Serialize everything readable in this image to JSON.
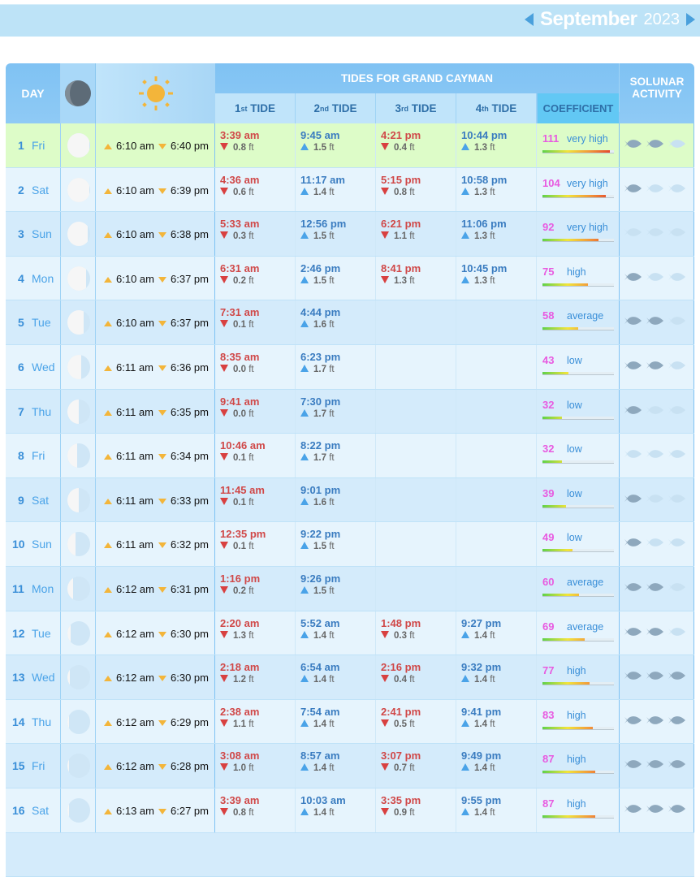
{
  "nav": {
    "month": "September",
    "year": "2023"
  },
  "header": {
    "day": "DAY",
    "tides_title": "TIDES FOR GRAND CAYMAN",
    "tides": [
      {
        "n": "1",
        "sup": "st",
        "label": "TIDE"
      },
      {
        "n": "2",
        "sup": "nd",
        "label": "TIDE"
      },
      {
        "n": "3",
        "sup": "rd",
        "label": "TIDE"
      },
      {
        "n": "4",
        "sup": "th",
        "label": "TIDE"
      }
    ],
    "coefficient": "COEFFICIENT",
    "solunar": "SOLUNAR ACTIVITY"
  },
  "colors": {
    "low_tide": "#d04848",
    "high_tide": "#3a7cc0",
    "coefficient": "#e85ae0",
    "highlight_row": "#ddfcc8",
    "row_odd": "#d4ebfb",
    "row_even": "#e6f4fd"
  },
  "unit": "ft",
  "rows": [
    {
      "day": "1",
      "dow": "Fri",
      "moon_illumination": 0.98,
      "sunrise": "6:10 am",
      "sunset": "6:40 pm",
      "tides": [
        {
          "time": "3:39 am",
          "type": "low",
          "height": "0.8"
        },
        {
          "time": "9:45 am",
          "type": "high",
          "height": "1.5"
        },
        {
          "time": "4:21 pm",
          "type": "low",
          "height": "0.4"
        },
        {
          "time": "10:44 pm",
          "type": "high",
          "height": "1.3"
        }
      ],
      "coef": "111",
      "coef_label": "very high",
      "solunar": 2
    },
    {
      "day": "2",
      "dow": "Sat",
      "moon_illumination": 0.95,
      "sunrise": "6:10 am",
      "sunset": "6:39 pm",
      "tides": [
        {
          "time": "4:36 am",
          "type": "low",
          "height": "0.6"
        },
        {
          "time": "11:17 am",
          "type": "high",
          "height": "1.4"
        },
        {
          "time": "5:15 pm",
          "type": "low",
          "height": "0.8"
        },
        {
          "time": "10:58 pm",
          "type": "high",
          "height": "1.3"
        }
      ],
      "coef": "104",
      "coef_label": "very high",
      "solunar": 1
    },
    {
      "day": "3",
      "dow": "Sun",
      "moon_illumination": 0.9,
      "sunrise": "6:10 am",
      "sunset": "6:38 pm",
      "tides": [
        {
          "time": "5:33 am",
          "type": "low",
          "height": "0.3"
        },
        {
          "time": "12:56 pm",
          "type": "high",
          "height": "1.5"
        },
        {
          "time": "6:21 pm",
          "type": "low",
          "height": "1.1"
        },
        {
          "time": "11:06 pm",
          "type": "high",
          "height": "1.3"
        }
      ],
      "coef": "92",
      "coef_label": "very high",
      "solunar": 0
    },
    {
      "day": "4",
      "dow": "Mon",
      "moon_illumination": 0.82,
      "sunrise": "6:10 am",
      "sunset": "6:37 pm",
      "tides": [
        {
          "time": "6:31 am",
          "type": "low",
          "height": "0.2"
        },
        {
          "time": "2:46 pm",
          "type": "high",
          "height": "1.5"
        },
        {
          "time": "8:41 pm",
          "type": "low",
          "height": "1.3"
        },
        {
          "time": "10:45 pm",
          "type": "high",
          "height": "1.3"
        }
      ],
      "coef": "75",
      "coef_label": "high",
      "solunar": 1
    },
    {
      "day": "5",
      "dow": "Tue",
      "moon_illumination": 0.7,
      "sunrise": "6:10 am",
      "sunset": "6:37 pm",
      "tides": [
        {
          "time": "7:31 am",
          "type": "low",
          "height": "0.1"
        },
        {
          "time": "4:44 pm",
          "type": "high",
          "height": "1.6"
        }
      ],
      "coef": "58",
      "coef_label": "average",
      "solunar": 2
    },
    {
      "day": "6",
      "dow": "Wed",
      "moon_illumination": 0.6,
      "sunrise": "6:11 am",
      "sunset": "6:36 pm",
      "tides": [
        {
          "time": "8:35 am",
          "type": "low",
          "height": "0.0"
        },
        {
          "time": "6:23 pm",
          "type": "high",
          "height": "1.7"
        }
      ],
      "coef": "43",
      "coef_label": "low",
      "solunar": 2
    },
    {
      "day": "7",
      "dow": "Thu",
      "moon_illumination": 0.5,
      "sunrise": "6:11 am",
      "sunset": "6:35 pm",
      "tides": [
        {
          "time": "9:41 am",
          "type": "low",
          "height": "0.0"
        },
        {
          "time": "7:30 pm",
          "type": "high",
          "height": "1.7"
        }
      ],
      "coef": "32",
      "coef_label": "low",
      "solunar": 1
    },
    {
      "day": "8",
      "dow": "Fri",
      "moon_illumination": 0.42,
      "sunrise": "6:11 am",
      "sunset": "6:34 pm",
      "tides": [
        {
          "time": "10:46 am",
          "type": "low",
          "height": "0.1"
        },
        {
          "time": "8:22 pm",
          "type": "high",
          "height": "1.7"
        }
      ],
      "coef": "32",
      "coef_label": "low",
      "solunar": 0
    },
    {
      "day": "9",
      "dow": "Sat",
      "moon_illumination": 0.5,
      "sunrise": "6:11 am",
      "sunset": "6:33 pm",
      "tides": [
        {
          "time": "11:45 am",
          "type": "low",
          "height": "0.1"
        },
        {
          "time": "9:01 pm",
          "type": "high",
          "height": "1.6"
        }
      ],
      "coef": "39",
      "coef_label": "low",
      "solunar": 1
    },
    {
      "day": "10",
      "dow": "Sun",
      "moon_illumination": 0.35,
      "sunrise": "6:11 am",
      "sunset": "6:32 pm",
      "tides": [
        {
          "time": "12:35 pm",
          "type": "low",
          "height": "0.1"
        },
        {
          "time": "9:22 pm",
          "type": "high",
          "height": "1.5"
        }
      ],
      "coef": "49",
      "coef_label": "low",
      "solunar": 1
    },
    {
      "day": "11",
      "dow": "Mon",
      "moon_illumination": 0.25,
      "sunrise": "6:12 am",
      "sunset": "6:31 pm",
      "tides": [
        {
          "time": "1:16 pm",
          "type": "low",
          "height": "0.2"
        },
        {
          "time": "9:26 pm",
          "type": "high",
          "height": "1.5"
        }
      ],
      "coef": "60",
      "coef_label": "average",
      "solunar": 2
    },
    {
      "day": "12",
      "dow": "Tue",
      "moon_illumination": 0.15,
      "sunrise": "6:12 am",
      "sunset": "6:30 pm",
      "tides": [
        {
          "time": "2:20 am",
          "type": "low",
          "height": "1.3"
        },
        {
          "time": "5:52 am",
          "type": "high",
          "height": "1.4"
        },
        {
          "time": "1:48 pm",
          "type": "low",
          "height": "0.3"
        },
        {
          "time": "9:27 pm",
          "type": "high",
          "height": "1.4"
        }
      ],
      "coef": "69",
      "coef_label": "average",
      "solunar": 2
    },
    {
      "day": "13",
      "dow": "Wed",
      "moon_illumination": 0.1,
      "sunrise": "6:12 am",
      "sunset": "6:30 pm",
      "tides": [
        {
          "time": "2:18 am",
          "type": "low",
          "height": "1.2"
        },
        {
          "time": "6:54 am",
          "type": "high",
          "height": "1.4"
        },
        {
          "time": "2:16 pm",
          "type": "low",
          "height": "0.4"
        },
        {
          "time": "9:32 pm",
          "type": "high",
          "height": "1.4"
        }
      ],
      "coef": "77",
      "coef_label": "high",
      "solunar": 3
    },
    {
      "day": "14",
      "dow": "Thu",
      "moon_illumination": 0.07,
      "sunrise": "6:12 am",
      "sunset": "6:29 pm",
      "tides": [
        {
          "time": "2:38 am",
          "type": "low",
          "height": "1.1"
        },
        {
          "time": "7:54 am",
          "type": "high",
          "height": "1.4"
        },
        {
          "time": "2:41 pm",
          "type": "low",
          "height": "0.5"
        },
        {
          "time": "9:41 pm",
          "type": "high",
          "height": "1.4"
        }
      ],
      "coef": "83",
      "coef_label": "high",
      "solunar": 3
    },
    {
      "day": "15",
      "dow": "Fri",
      "moon_illumination": 0.04,
      "sunrise": "6:12 am",
      "sunset": "6:28 pm",
      "tides": [
        {
          "time": "3:08 am",
          "type": "low",
          "height": "1.0"
        },
        {
          "time": "8:57 am",
          "type": "high",
          "height": "1.4"
        },
        {
          "time": "3:07 pm",
          "type": "low",
          "height": "0.7"
        },
        {
          "time": "9:49 pm",
          "type": "high",
          "height": "1.4"
        }
      ],
      "coef": "87",
      "coef_label": "high",
      "solunar": 3
    },
    {
      "day": "16",
      "dow": "Sat",
      "moon_illumination": 0.0,
      "sunrise": "6:13 am",
      "sunset": "6:27 pm",
      "tides": [
        {
          "time": "3:39 am",
          "type": "low",
          "height": "0.8"
        },
        {
          "time": "10:03 am",
          "type": "high",
          "height": "1.4"
        },
        {
          "time": "3:35 pm",
          "type": "low",
          "height": "0.9"
        },
        {
          "time": "9:55 pm",
          "type": "high",
          "height": "1.4"
        }
      ],
      "coef": "87",
      "coef_label": "high",
      "solunar": 3
    }
  ]
}
